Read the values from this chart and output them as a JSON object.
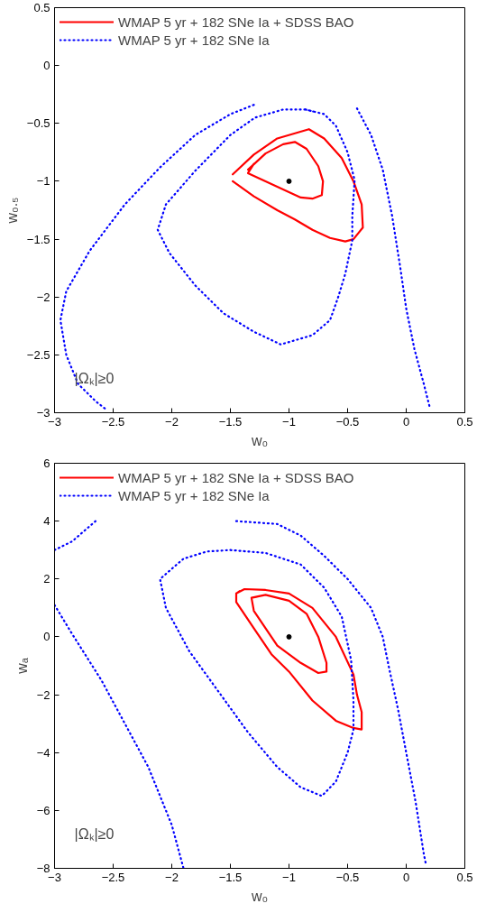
{
  "chart_data": [
    {
      "type": "line",
      "xlabel": "w₀",
      "ylabel": "w₀.₅",
      "xlim": [
        -3,
        0.5
      ],
      "ylim": [
        -3,
        0.5
      ],
      "xticks": [
        -3,
        -2.5,
        -2,
        -1.5,
        -1,
        -0.5,
        0,
        0.5
      ],
      "yticks": [
        -3,
        -2.5,
        -2,
        -1.5,
        -1,
        -0.5,
        0,
        0.5
      ],
      "grid": false,
      "legend": "top left",
      "annotations": [
        "|Ωₖ|≥0"
      ],
      "series": [
        {
          "name": "WMAP 5 yr + 182 SNe Ia + SDSS BAO",
          "color": "#ff0000",
          "line_style": "solid",
          "x": [
            -1.48,
            -1.3,
            -1.1,
            -0.83,
            -0.7,
            -0.55,
            -0.45,
            -0.38,
            -0.37,
            -0.45,
            -0.52,
            -0.65,
            -0.8,
            -0.95,
            -1.1,
            -1.3,
            -1.48
          ],
          "values": [
            -0.94,
            -0.77,
            -0.63,
            -0.55,
            -0.63,
            -0.8,
            -1.0,
            -1.2,
            -1.4,
            -1.5,
            -1.52,
            -1.49,
            -1.42,
            -1.33,
            -1.25,
            -1.13,
            -1.0
          ]
        },
        {
          "color": "#ff0000",
          "line_style": "solid",
          "x": [
            -1.35,
            -1.2,
            -1.05,
            -0.95,
            -0.85,
            -0.75,
            -0.71,
            -0.72,
            -0.8,
            -0.9,
            -1.05,
            -1.2,
            -1.35,
            -1.3
          ],
          "values": [
            -0.9,
            -0.76,
            -0.68,
            -0.66,
            -0.72,
            -0.87,
            -1.0,
            -1.12,
            -1.15,
            -1.14,
            -1.07,
            -1.0,
            -0.93,
            -0.85
          ]
        },
        {
          "name": "WMAP 5 yr + 182 SNe Ia",
          "color": "#0000ff",
          "line_style": "dotted",
          "x": [
            -0.86,
            -0.7,
            -0.6,
            -0.5,
            -0.44,
            -0.46,
            -0.46,
            -0.52,
            -0.58,
            -0.65,
            -0.8,
            -1.07,
            -1.3,
            -1.56,
            -1.8,
            -2.02,
            -2.12,
            -2.05,
            -1.8,
            -1.5,
            -1.29,
            -1.05,
            -0.86,
            -0.78
          ],
          "values": [
            -0.38,
            -0.42,
            -0.52,
            -0.75,
            -0.99,
            -1.3,
            -1.51,
            -1.8,
            -2.0,
            -2.2,
            -2.33,
            -2.41,
            -2.3,
            -2.14,
            -1.9,
            -1.62,
            -1.42,
            -1.2,
            -0.91,
            -0.6,
            -0.45,
            -0.38,
            -0.38,
            -0.4
          ]
        },
        {
          "color": "#0000ff",
          "line_style": "dotted",
          "x": [
            -1.3,
            -1.5,
            -1.8,
            -2.1,
            -2.4,
            -2.7,
            -2.9,
            -2.95,
            -2.9,
            -2.8,
            -2.65,
            -2.55
          ],
          "values": [
            -0.34,
            -0.42,
            -0.6,
            -0.88,
            -1.2,
            -1.6,
            -1.95,
            -2.2,
            -2.5,
            -2.75,
            -2.9,
            -2.98
          ]
        },
        {
          "color": "#0000ff",
          "line_style": "dotted",
          "x": [
            -0.42,
            -0.3,
            -0.2,
            -0.12,
            -0.05,
            0,
            0.07,
            0.15,
            0.2
          ],
          "values": [
            -0.37,
            -0.6,
            -0.9,
            -1.3,
            -1.75,
            -2.1,
            -2.45,
            -2.75,
            -2.95
          ]
        },
        {
          "type": "scatter",
          "marker": "circle",
          "color": "#000000",
          "x": [
            -1
          ],
          "values": [
            -1
          ]
        }
      ]
    },
    {
      "type": "line",
      "xlabel": "w₀",
      "ylabel": "wₐ",
      "xlim": [
        -3,
        0.5
      ],
      "ylim": [
        -8,
        6
      ],
      "xticks": [
        -3,
        -2.5,
        -2,
        -1.5,
        -1,
        -0.5,
        0,
        0.5
      ],
      "yticks": [
        -8,
        -6,
        -4,
        -2,
        0,
        2,
        4,
        6
      ],
      "grid": false,
      "legend": "top left",
      "annotations": [
        "|Ωₖ|≥0"
      ],
      "series": [
        {
          "name": "WMAP 5 yr + 182 SNe Ia + SDSS BAO",
          "color": "#ff0000",
          "line_style": "solid",
          "x": [
            -1.45,
            -1.38,
            -1.2,
            -1.0,
            -0.8,
            -0.6,
            -0.45,
            -0.42,
            -0.38,
            -0.38,
            -0.45,
            -0.6,
            -0.8,
            -1.0,
            -1.15,
            -1.3,
            -1.45,
            -1.45,
            -1.42
          ],
          "values": [
            1.5,
            1.65,
            1.62,
            1.5,
            1.0,
            0.0,
            -1.3,
            -2.0,
            -2.6,
            -3.2,
            -3.15,
            -2.9,
            -2.2,
            -1.2,
            -0.6,
            0.3,
            1.2,
            1.5,
            1.58
          ]
        },
        {
          "color": "#ff0000",
          "line_style": "solid",
          "x": [
            -1.32,
            -1.2,
            -1.0,
            -0.85,
            -0.75,
            -0.68,
            -0.68,
            -0.75,
            -0.9,
            -1.1,
            -1.3,
            -1.32,
            -1.27
          ],
          "values": [
            1.35,
            1.45,
            1.25,
            0.8,
            0.0,
            -0.9,
            -1.2,
            -1.25,
            -0.9,
            -0.3,
            0.9,
            1.35,
            1.39
          ]
        },
        {
          "name": "WMAP 5 yr + 182 SNe Ia",
          "color": "#0000ff",
          "line_style": "dotted",
          "x": [
            -1.5,
            -1.2,
            -0.9,
            -0.7,
            -0.55,
            -0.47,
            -0.45,
            -0.45,
            -0.5,
            -0.6,
            -0.72,
            -0.9,
            -1.1,
            -1.35,
            -1.6,
            -1.85,
            -2.05,
            -2.1,
            -1.9,
            -1.7,
            -1.5,
            -1.35
          ],
          "values": [
            3.0,
            2.9,
            2.5,
            1.7,
            0.7,
            -0.8,
            -2.2,
            -3.2,
            -4.0,
            -5.0,
            -5.5,
            -5.2,
            -4.5,
            -3.3,
            -1.9,
            -0.5,
            1.0,
            2.0,
            2.7,
            2.95,
            3.0,
            2.95
          ]
        },
        {
          "color": "#0000ff",
          "line_style": "dotted",
          "x": [
            -3,
            -2.85,
            -2.65
          ],
          "values": [
            3.0,
            3.3,
            4.0
          ]
        },
        {
          "color": "#0000ff",
          "line_style": "dotted",
          "x": [
            -3,
            -2.85,
            -2.6,
            -2.4,
            -2.2,
            -2.0,
            -1.9
          ],
          "values": [
            1.1,
            0.1,
            -1.5,
            -3,
            -4.5,
            -6.5,
            -8
          ]
        },
        {
          "color": "#0000ff",
          "line_style": "dotted",
          "x": [
            -1.45,
            -1.1,
            -0.9,
            -0.7,
            -0.5,
            -0.3,
            -0.2,
            -0.15,
            -0.07,
            0.0,
            0.08,
            0.15,
            0.17
          ],
          "values": [
            4.0,
            3.9,
            3.5,
            2.8,
            2.0,
            1.0,
            0.0,
            -1.0,
            -2.5,
            -4.0,
            -5.7,
            -7.5,
            -7.9
          ]
        },
        {
          "type": "scatter",
          "marker": "circle",
          "color": "#000000",
          "x": [
            -1
          ],
          "values": [
            0
          ]
        }
      ]
    }
  ]
}
